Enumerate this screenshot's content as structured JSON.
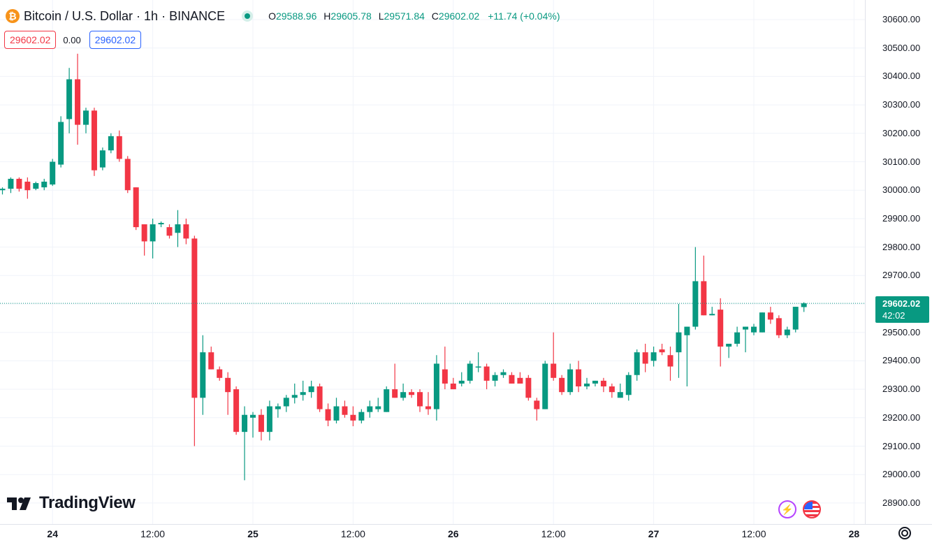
{
  "header": {
    "coin_glyph": "₿",
    "symbol": "Bitcoin / U.S. Dollar · 1h · BINANCE",
    "o_key": "O",
    "o_val": "29588.96",
    "h_key": "H",
    "h_val": "29605.78",
    "l_key": "L",
    "l_val": "29571.84",
    "c_key": "C",
    "c_val": "29602.02",
    "change": "+11.74 (+0.04%)"
  },
  "trade": {
    "sell": "29602.02",
    "spread": "0.00",
    "buy": "29602.02"
  },
  "current": {
    "price": "29602.02",
    "countdown": "42:02"
  },
  "logo": {
    "text": "TradingView"
  },
  "colors": {
    "up": "#089981",
    "down": "#f23645",
    "grid": "#f0f3fa",
    "axis_text": "#131722"
  },
  "icons": {
    "flash": "lightning-icon",
    "flag": "us-flag-icon",
    "settings": "gear-icon"
  },
  "chart_data": {
    "type": "candlestick",
    "interval": "1h",
    "y_axis_ticks": [
      "30600.00",
      "30500.00",
      "30400.00",
      "30300.00",
      "30200.00",
      "30100.00",
      "30000.00",
      "29900.00",
      "29800.00",
      "29700.00",
      "29600.00",
      "29500.00",
      "29400.00",
      "29300.00",
      "29200.00",
      "29100.00",
      "29000.00",
      "28900.00"
    ],
    "ylim": [
      28860,
      30640
    ],
    "x_axis_labels": [
      {
        "label": "24",
        "index": 6,
        "day": true
      },
      {
        "label": "12:00",
        "index": 18,
        "day": false
      },
      {
        "label": "25",
        "index": 30,
        "day": true
      },
      {
        "label": "12:00",
        "index": 42,
        "day": false
      },
      {
        "label": "26",
        "index": 54,
        "day": true
      },
      {
        "label": "12:00",
        "index": 66,
        "day": false
      },
      {
        "label": "27",
        "index": 78,
        "day": true
      },
      {
        "label": "12:00",
        "index": 90,
        "day": false
      },
      {
        "label": "28",
        "index": 102,
        "day": true
      }
    ],
    "candles": [
      {
        "o": 30000,
        "h": 30010,
        "l": 29985,
        "c": 30005
      },
      {
        "o": 30005,
        "h": 30045,
        "l": 29990,
        "c": 30040
      },
      {
        "o": 30040,
        "h": 30045,
        "l": 29995,
        "c": 30005
      },
      {
        "o": 30030,
        "h": 30045,
        "l": 29970,
        "c": 30000
      },
      {
        "o": 30005,
        "h": 30030,
        "l": 30000,
        "c": 30025
      },
      {
        "o": 30010,
        "h": 30040,
        "l": 30000,
        "c": 30030
      },
      {
        "o": 30020,
        "h": 30110,
        "l": 30015,
        "c": 30100
      },
      {
        "o": 30090,
        "h": 30260,
        "l": 30080,
        "c": 30240
      },
      {
        "o": 30250,
        "h": 30430,
        "l": 30200,
        "c": 30390
      },
      {
        "o": 30390,
        "h": 30480,
        "l": 30160,
        "c": 30230
      },
      {
        "o": 30230,
        "h": 30290,
        "l": 30200,
        "c": 30280
      },
      {
        "o": 30280,
        "h": 30290,
        "l": 30050,
        "c": 30070
      },
      {
        "o": 30080,
        "h": 30150,
        "l": 30070,
        "c": 30140
      },
      {
        "o": 30140,
        "h": 30200,
        "l": 30130,
        "c": 30190
      },
      {
        "o": 30190,
        "h": 30210,
        "l": 30100,
        "c": 30110
      },
      {
        "o": 30110,
        "h": 30120,
        "l": 29990,
        "c": 30000
      },
      {
        "o": 30010,
        "h": 30010,
        "l": 29860,
        "c": 29870
      },
      {
        "o": 29880,
        "h": 29880,
        "l": 29770,
        "c": 29820
      },
      {
        "o": 29820,
        "h": 29900,
        "l": 29760,
        "c": 29880
      },
      {
        "o": 29880,
        "h": 29890,
        "l": 29870,
        "c": 29885
      },
      {
        "o": 29870,
        "h": 29880,
        "l": 29830,
        "c": 29840
      },
      {
        "o": 29850,
        "h": 29930,
        "l": 29800,
        "c": 29880
      },
      {
        "o": 29880,
        "h": 29900,
        "l": 29810,
        "c": 29830
      },
      {
        "o": 29830,
        "h": 29840,
        "l": 29100,
        "c": 29270
      },
      {
        "o": 29270,
        "h": 29490,
        "l": 29210,
        "c": 29430
      },
      {
        "o": 29430,
        "h": 29450,
        "l": 29370,
        "c": 29370
      },
      {
        "o": 29370,
        "h": 29380,
        "l": 29330,
        "c": 29340
      },
      {
        "o": 29340,
        "h": 29360,
        "l": 29210,
        "c": 29290
      },
      {
        "o": 29300,
        "h": 29310,
        "l": 29140,
        "c": 29150
      },
      {
        "o": 29150,
        "h": 29240,
        "l": 28980,
        "c": 29210
      },
      {
        "o": 29200,
        "h": 29220,
        "l": 29130,
        "c": 29210
      },
      {
        "o": 29210,
        "h": 29230,
        "l": 29120,
        "c": 29150
      },
      {
        "o": 29150,
        "h": 29260,
        "l": 29120,
        "c": 29240
      },
      {
        "o": 29230,
        "h": 29250,
        "l": 29200,
        "c": 29240
      },
      {
        "o": 29240,
        "h": 29280,
        "l": 29220,
        "c": 29270
      },
      {
        "o": 29270,
        "h": 29320,
        "l": 29250,
        "c": 29280
      },
      {
        "o": 29280,
        "h": 29330,
        "l": 29260,
        "c": 29290
      },
      {
        "o": 29290,
        "h": 29330,
        "l": 29270,
        "c": 29310
      },
      {
        "o": 29310,
        "h": 29320,
        "l": 29220,
        "c": 29230
      },
      {
        "o": 29230,
        "h": 29250,
        "l": 29170,
        "c": 29190
      },
      {
        "o": 29190,
        "h": 29270,
        "l": 29180,
        "c": 29240
      },
      {
        "o": 29240,
        "h": 29260,
        "l": 29200,
        "c": 29210
      },
      {
        "o": 29210,
        "h": 29240,
        "l": 29170,
        "c": 29190
      },
      {
        "o": 29190,
        "h": 29230,
        "l": 29180,
        "c": 29220
      },
      {
        "o": 29220,
        "h": 29260,
        "l": 29200,
        "c": 29240
      },
      {
        "o": 29230,
        "h": 29270,
        "l": 29220,
        "c": 29240
      },
      {
        "o": 29220,
        "h": 29310,
        "l": 29220,
        "c": 29300
      },
      {
        "o": 29300,
        "h": 29390,
        "l": 29270,
        "c": 29270
      },
      {
        "o": 29270,
        "h": 29320,
        "l": 29260,
        "c": 29290
      },
      {
        "o": 29290,
        "h": 29300,
        "l": 29270,
        "c": 29280
      },
      {
        "o": 29290,
        "h": 29300,
        "l": 29220,
        "c": 29240
      },
      {
        "o": 29240,
        "h": 29290,
        "l": 29210,
        "c": 29230
      },
      {
        "o": 29230,
        "h": 29420,
        "l": 29190,
        "c": 29390
      },
      {
        "o": 29370,
        "h": 29450,
        "l": 29300,
        "c": 29320
      },
      {
        "o": 29320,
        "h": 29340,
        "l": 29300,
        "c": 29300
      },
      {
        "o": 29320,
        "h": 29360,
        "l": 29310,
        "c": 29330
      },
      {
        "o": 29330,
        "h": 29400,
        "l": 29320,
        "c": 29390
      },
      {
        "o": 29380,
        "h": 29430,
        "l": 29360,
        "c": 29380
      },
      {
        "o": 29380,
        "h": 29390,
        "l": 29300,
        "c": 29330
      },
      {
        "o": 29330,
        "h": 29360,
        "l": 29310,
        "c": 29350
      },
      {
        "o": 29350,
        "h": 29370,
        "l": 29340,
        "c": 29360
      },
      {
        "o": 29350,
        "h": 29360,
        "l": 29320,
        "c": 29320
      },
      {
        "o": 29340,
        "h": 29360,
        "l": 29320,
        "c": 29320
      },
      {
        "o": 29340,
        "h": 29350,
        "l": 29260,
        "c": 29270
      },
      {
        "o": 29260,
        "h": 29270,
        "l": 29190,
        "c": 29230
      },
      {
        "o": 29230,
        "h": 29400,
        "l": 29230,
        "c": 29390
      },
      {
        "o": 29390,
        "h": 29500,
        "l": 29330,
        "c": 29340
      },
      {
        "o": 29340,
        "h": 29350,
        "l": 29280,
        "c": 29290
      },
      {
        "o": 29290,
        "h": 29390,
        "l": 29280,
        "c": 29370
      },
      {
        "o": 29370,
        "h": 29400,
        "l": 29290,
        "c": 29310
      },
      {
        "o": 29310,
        "h": 29340,
        "l": 29300,
        "c": 29320
      },
      {
        "o": 29320,
        "h": 29330,
        "l": 29310,
        "c": 29330
      },
      {
        "o": 29330,
        "h": 29340,
        "l": 29290,
        "c": 29310
      },
      {
        "o": 29310,
        "h": 29320,
        "l": 29270,
        "c": 29290
      },
      {
        "o": 29270,
        "h": 29320,
        "l": 29270,
        "c": 29290
      },
      {
        "o": 29280,
        "h": 29360,
        "l": 29260,
        "c": 29350
      },
      {
        "o": 29350,
        "h": 29440,
        "l": 29330,
        "c": 29430
      },
      {
        "o": 29430,
        "h": 29460,
        "l": 29360,
        "c": 29390
      },
      {
        "o": 29400,
        "h": 29450,
        "l": 29380,
        "c": 29430
      },
      {
        "o": 29440,
        "h": 29460,
        "l": 29420,
        "c": 29430
      },
      {
        "o": 29420,
        "h": 29450,
        "l": 29330,
        "c": 29380
      },
      {
        "o": 29430,
        "h": 29600,
        "l": 29340,
        "c": 29500
      },
      {
        "o": 29490,
        "h": 29520,
        "l": 29310,
        "c": 29520
      },
      {
        "o": 29520,
        "h": 29800,
        "l": 29510,
        "c": 29680
      },
      {
        "o": 29680,
        "h": 29770,
        "l": 29560,
        "c": 29560
      },
      {
        "o": 29560,
        "h": 29590,
        "l": 29560,
        "c": 29565
      },
      {
        "o": 29580,
        "h": 29620,
        "l": 29380,
        "c": 29450
      },
      {
        "o": 29450,
        "h": 29460,
        "l": 29410,
        "c": 29460
      },
      {
        "o": 29460,
        "h": 29520,
        "l": 29450,
        "c": 29500
      },
      {
        "o": 29510,
        "h": 29520,
        "l": 29430,
        "c": 29520
      },
      {
        "o": 29500,
        "h": 29530,
        "l": 29490,
        "c": 29520
      },
      {
        "o": 29500,
        "h": 29570,
        "l": 29500,
        "c": 29570
      },
      {
        "o": 29570,
        "h": 29590,
        "l": 29530,
        "c": 29545
      },
      {
        "o": 29550,
        "h": 29560,
        "l": 29480,
        "c": 29490
      },
      {
        "o": 29490,
        "h": 29520,
        "l": 29480,
        "c": 29510
      },
      {
        "o": 29510,
        "h": 29590,
        "l": 29500,
        "c": 29590
      },
      {
        "o": 29588.96,
        "h": 29605.78,
        "l": 29571.84,
        "c": 29602.02
      }
    ]
  }
}
